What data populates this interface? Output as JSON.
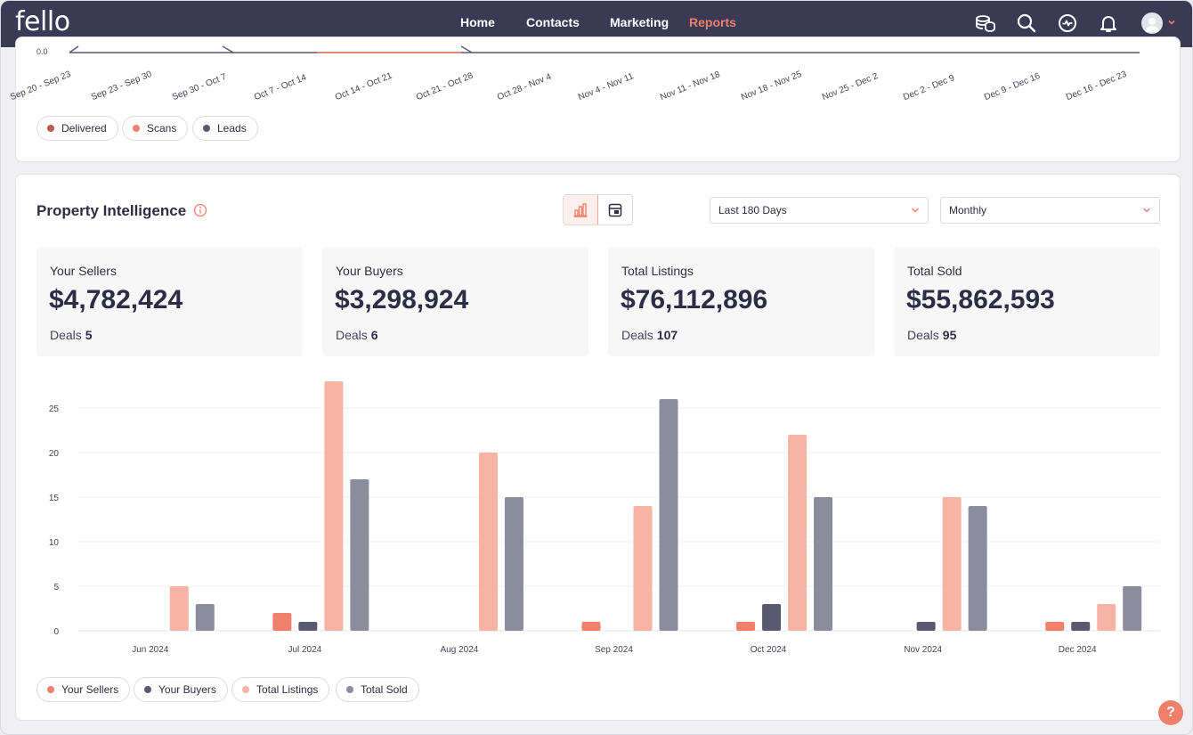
{
  "app": {
    "logo": "fello"
  },
  "nav": {
    "items": [
      {
        "label": "Home",
        "active": false
      },
      {
        "label": "Contacts",
        "active": false
      },
      {
        "label": "Marketing",
        "active": false
      },
      {
        "label": "Reports",
        "active": true
      }
    ]
  },
  "top_icons": [
    "coins-icon",
    "search-icon",
    "activity-icon",
    "bell-icon",
    "avatar"
  ],
  "previous_chart": {
    "y_tick": "0.0",
    "weeks": [
      "Sep 20 - Sep 23",
      "Sep 23 - Sep 30",
      "Sep 30 - Oct 7",
      "Oct 7 - Oct 14",
      "Oct 14 - Oct 21",
      "Oct 21 - Oct 28",
      "Oct 28 - Nov 4",
      "Nov 4 - Nov 11",
      "Nov 11 - Nov 18",
      "Nov 18 - Nov 25",
      "Nov 25 - Dec 2",
      "Dec 2 - Dec 9",
      "Dec 9 - Dec 16",
      "Dec 16 - Dec 23"
    ],
    "legend": [
      {
        "label": "Delivered",
        "color": "#b95a55"
      },
      {
        "label": "Scans",
        "color": "#f0806c"
      },
      {
        "label": "Leads",
        "color": "#5b5970"
      }
    ]
  },
  "property_intelligence": {
    "title": "Property Intelligence",
    "date_range": "Last 180 Days",
    "interval": "Monthly",
    "stats": [
      {
        "label": "Your Sellers",
        "value": "$4,782,424",
        "deals_label": "Deals",
        "deals": "5"
      },
      {
        "label": "Your Buyers",
        "value": "$3,298,924",
        "deals_label": "Deals",
        "deals": "6"
      },
      {
        "label": "Total Listings",
        "value": "$76,112,896",
        "deals_label": "Deals",
        "deals": "107"
      },
      {
        "label": "Total Sold",
        "value": "$55,862,593",
        "deals_label": "Deals",
        "deals": "95"
      }
    ]
  },
  "chart_data": {
    "type": "bar",
    "title": "",
    "categories": [
      "Jun 2024",
      "Jul 2024",
      "Aug 2024",
      "Sep 2024",
      "Oct 2024",
      "Nov 2024",
      "Dec 2024"
    ],
    "series": [
      {
        "name": "Your Sellers",
        "color": "#f0806c",
        "values": [
          0,
          2,
          0,
          1,
          1,
          0,
          1
        ]
      },
      {
        "name": "Your Buyers",
        "color": "#5b5970",
        "values": [
          0,
          1,
          0,
          0,
          3,
          1,
          1
        ]
      },
      {
        "name": "Total Listings",
        "color": "#f7b3a4",
        "values": [
          5,
          28,
          20,
          14,
          22,
          15,
          3
        ]
      },
      {
        "name": "Total Sold",
        "color": "#8d8c9c",
        "values": [
          3,
          17,
          15,
          26,
          15,
          14,
          5
        ]
      }
    ],
    "yticks": [
      0,
      5,
      10,
      15,
      20,
      25
    ],
    "ylim": [
      0,
      28
    ],
    "grid": true,
    "legend_position": "bottom-left"
  },
  "help": {
    "label": "?"
  }
}
